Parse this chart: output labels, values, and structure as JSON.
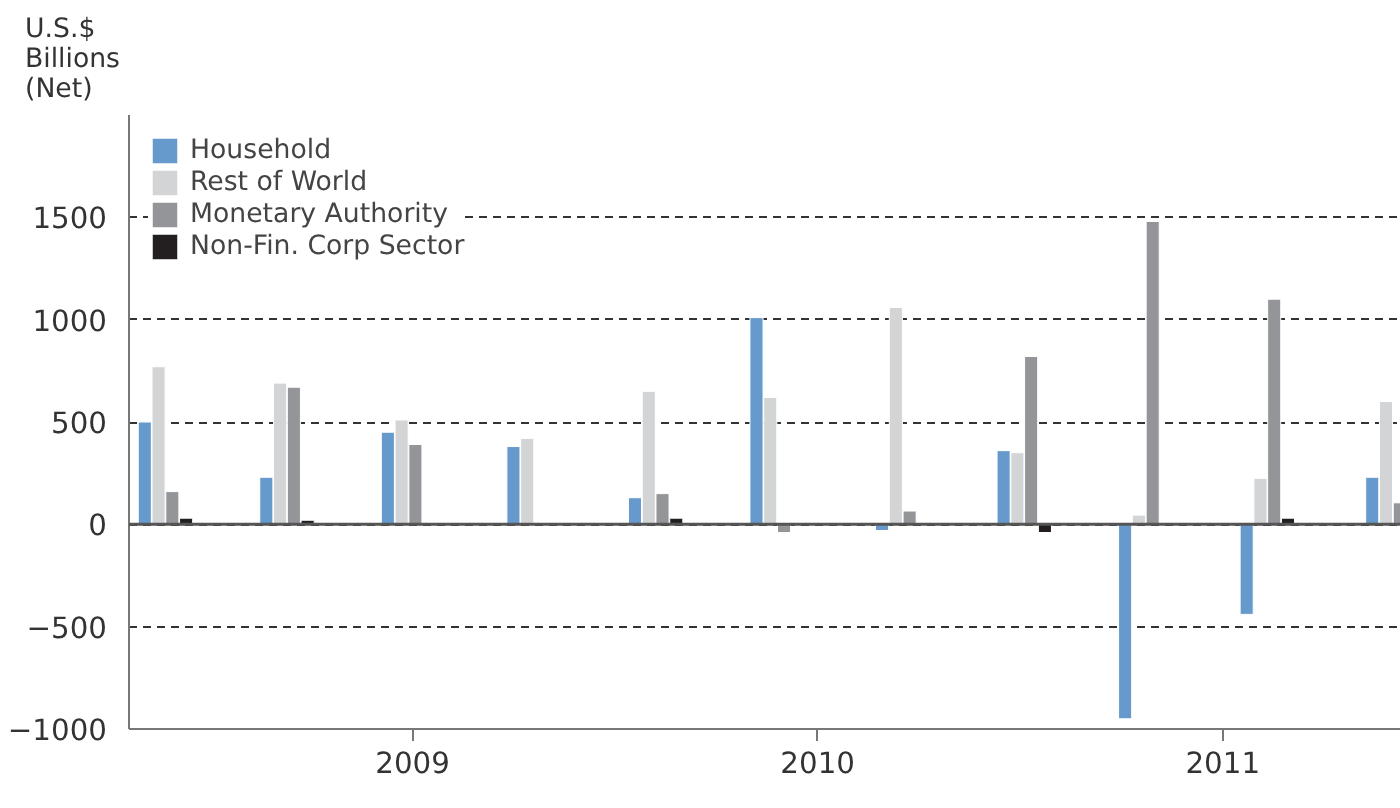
{
  "chart_data": {
    "type": "bar",
    "ylabel": "U.S.$\nBillions\n(Net)",
    "x": [
      2008.39,
      2008.69,
      2008.99,
      2009.3,
      2009.6,
      2009.9,
      2010.21,
      2010.51,
      2010.81,
      2011.11,
      2011.42
    ],
    "series": [
      {
        "name": "Household",
        "color": "#6699cc",
        "values": [
          500,
          230,
          450,
          380,
          130,
          1010,
          -30,
          360,
          -950,
          -440,
          230
        ]
      },
      {
        "name": "Rest of World",
        "color": "#d3d4d5",
        "values": [
          770,
          690,
          510,
          420,
          650,
          620,
          1060,
          350,
          45,
          225,
          600
        ]
      },
      {
        "name": "Monetary Authority",
        "color": "#939598",
        "values": [
          160,
          670,
          390,
          null,
          150,
          -40,
          65,
          820,
          1480,
          1100,
          105
        ]
      },
      {
        "name": "Non-Fin. Corp Sector",
        "color": "#231f20",
        "values": [
          30,
          20,
          null,
          null,
          30,
          null,
          5,
          -40,
          null,
          30,
          -10
        ]
      }
    ],
    "xlim": [
      2008.3,
      2011.44
    ],
    "xticks": [
      2009,
      2010,
      2011
    ],
    "ylim": [
      -1000,
      2000
    ],
    "yticks": [
      -1000,
      -500,
      0,
      500,
      1000,
      1500
    ],
    "ref_lines": [
      {
        "axis": "y",
        "value": 0,
        "color": "#555555"
      }
    ],
    "grid": "y",
    "legend": "top left"
  }
}
